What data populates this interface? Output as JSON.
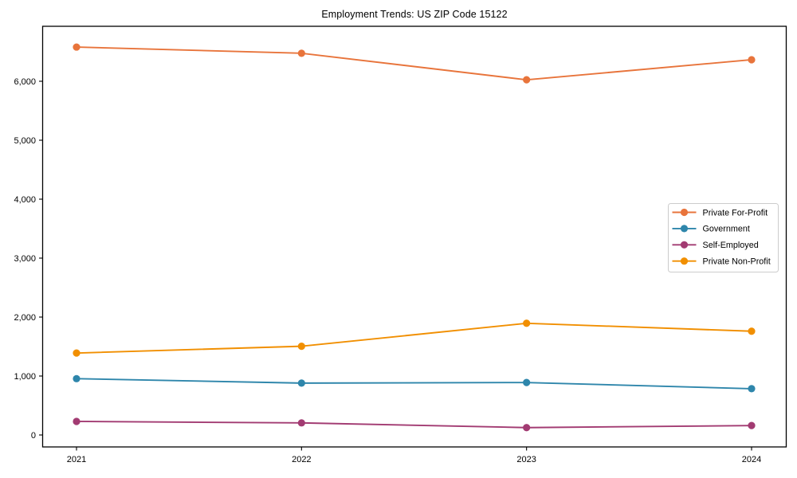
{
  "figure": {
    "title": "Employment Trends: US ZIP Code 15122"
  },
  "chart_data": {
    "type": "line",
    "title": "Employment Trends: US ZIP Code 15122",
    "x": [
      "2021",
      "2022",
      "2023",
      "2024"
    ],
    "series": [
      {
        "name": "Private For-Profit",
        "color": "#e8743b",
        "values": [
          6580,
          6475,
          6025,
          6365
        ]
      },
      {
        "name": "Government",
        "color": "#2e86ab",
        "values": [
          955,
          880,
          890,
          785
        ]
      },
      {
        "name": "Self-Employed",
        "color": "#a23b72",
        "values": [
          230,
          205,
          125,
          160
        ]
      },
      {
        "name": "Private Non-Profit",
        "color": "#f18f01",
        "values": [
          1390,
          1505,
          1895,
          1760
        ]
      }
    ],
    "xlabel": "",
    "ylabel": "",
    "yticks": [
      0,
      1000,
      2000,
      3000,
      4000,
      5000,
      6000
    ],
    "ytick_labels": [
      "0",
      "1,000",
      "2,000",
      "3,000",
      "4,000",
      "5,000",
      "6,000"
    ],
    "ylim": [
      -200,
      6930
    ],
    "grid": false,
    "legend_position": "center right",
    "marker": "circle",
    "axis_color": "#000000",
    "legend_border_color": "#cccccc",
    "background": "#ffffff"
  }
}
